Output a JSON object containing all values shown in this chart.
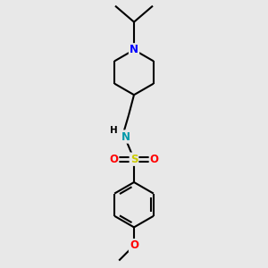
{
  "background_color": "#e8e8e8",
  "bond_color": "#000000",
  "bond_width": 1.5,
  "atom_colors": {
    "N_piperidine": "#0000ff",
    "N_sulfonamide": "#0099aa",
    "S": "#cccc00",
    "O_sulfonyl": "#ff0000",
    "O_methoxy": "#ff0000"
  },
  "font_size": 8.5,
  "figure_size": [
    3.0,
    3.0
  ],
  "dpi": 100,
  "xlim": [
    -1.0,
    1.0
  ],
  "ylim": [
    -2.8,
    2.2
  ]
}
